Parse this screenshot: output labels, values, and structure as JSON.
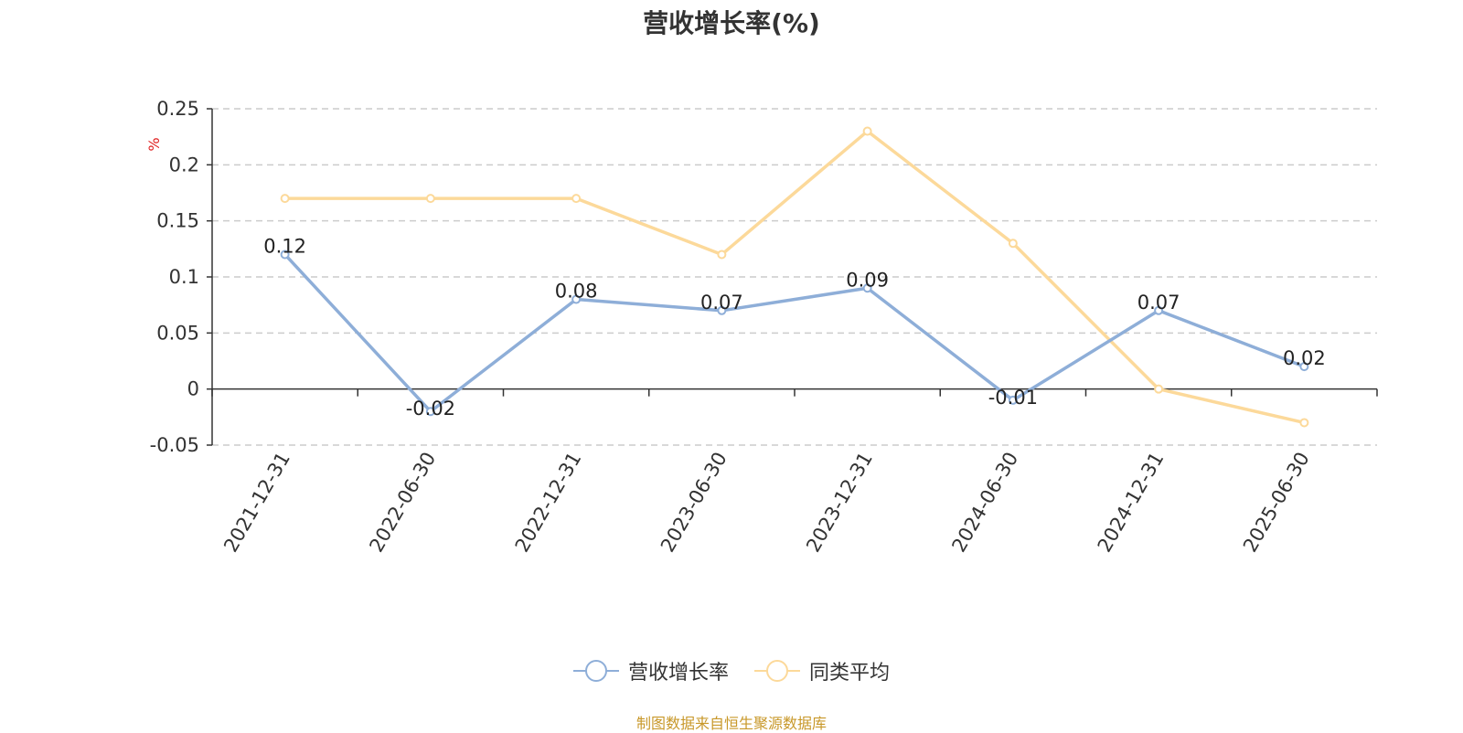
{
  "chart_data": {
    "type": "line",
    "title": "营收增长率(%)",
    "ylabel": "%",
    "xlabel": "",
    "categories": [
      "2021-12-31",
      "2022-06-30",
      "2022-12-31",
      "2023-06-30",
      "2023-12-31",
      "2024-06-30",
      "2024-12-31",
      "2025-06-30"
    ],
    "yticks": [
      "0.25",
      "0.2",
      "0.15",
      "0.1",
      "0.05",
      "0",
      "-0.05"
    ],
    "ylim": [
      -0.05,
      0.25
    ],
    "grid": true,
    "legend_position": "bottom",
    "series": [
      {
        "name": "营收增长率",
        "color": "#8eaed8",
        "values": [
          0.12,
          -0.02,
          0.08,
          0.07,
          0.09,
          -0.01,
          0.07,
          0.02
        ],
        "labels": [
          "0.12",
          "-0.02",
          "0.08",
          "0.07",
          "0.09",
          "-0.01",
          "0.07",
          "0.02"
        ],
        "show_labels": true
      },
      {
        "name": "同类平均",
        "color": "#fcd99a",
        "values": [
          0.17,
          0.17,
          0.17,
          0.12,
          0.23,
          0.13,
          0.0,
          -0.03
        ],
        "show_labels": false
      }
    ]
  },
  "source_note": "制图数据来自恒生聚源数据库"
}
